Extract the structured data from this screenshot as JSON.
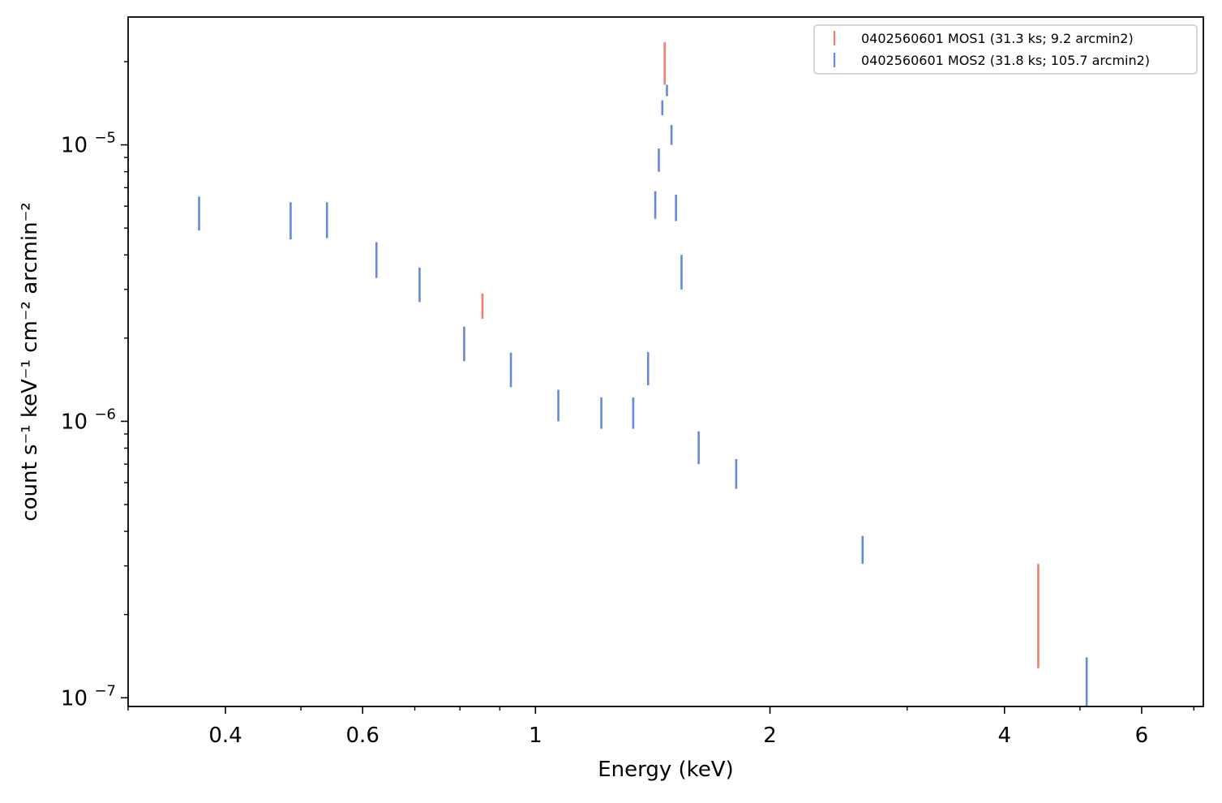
{
  "chart_data": {
    "type": "scatter",
    "title": "",
    "xlabel": "Energy (keV)",
    "ylabel": "count s⁻¹ keV⁻¹ cm⁻² arcmin⁻²",
    "xscale": "log",
    "yscale": "log",
    "xlim": [
      0.3,
      7.2
    ],
    "ylim": [
      9.3e-08,
      2.9e-05
    ],
    "grid": false,
    "legend_position": "top-right",
    "x_ticks": [
      {
        "value": 0.4,
        "label": "0.4"
      },
      {
        "value": 0.6,
        "label": "0.6"
      },
      {
        "value": 1,
        "label": "1"
      },
      {
        "value": 2,
        "label": "2"
      },
      {
        "value": 4,
        "label": "4"
      },
      {
        "value": 6,
        "label": "6"
      }
    ],
    "y_ticks": [
      {
        "value": 1e-07,
        "base": "10",
        "exp": "−7"
      },
      {
        "value": 1e-06,
        "base": "10",
        "exp": "−6"
      },
      {
        "value": 1e-05,
        "base": "10",
        "exp": "−5"
      }
    ],
    "series": [
      {
        "name": "0402560601 MOS1 (31.3 ks; 9.2 arcmin2)",
        "color": "#f07f6e",
        "points": [
          {
            "x": 0.855,
            "ylo": 2.35e-06,
            "yhi": 2.9e-06
          },
          {
            "x": 1.465,
            "ylo": 1.65e-05,
            "yhi": 2.35e-05
          },
          {
            "x": 4.42,
            "ylo": 1.28e-07,
            "yhi": 3.05e-07
          }
        ]
      },
      {
        "name": "0402560601 MOS2 (31.8 ks; 105.7 arcmin2)",
        "color": "#6688dd",
        "points": [
          {
            "x": 0.37,
            "ylo": 4.9e-06,
            "yhi": 6.5e-06
          },
          {
            "x": 0.485,
            "ylo": 4.55e-06,
            "yhi": 6.2e-06
          },
          {
            "x": 0.54,
            "ylo": 4.6e-06,
            "yhi": 6.2e-06
          },
          {
            "x": 0.625,
            "ylo": 3.3e-06,
            "yhi": 4.45e-06
          },
          {
            "x": 0.71,
            "ylo": 2.7e-06,
            "yhi": 3.6e-06
          },
          {
            "x": 0.81,
            "ylo": 1.65e-06,
            "yhi": 2.2e-06
          },
          {
            "x": 0.93,
            "ylo": 1.33e-06,
            "yhi": 1.77e-06
          },
          {
            "x": 1.07,
            "ylo": 1e-06,
            "yhi": 1.3e-06
          },
          {
            "x": 1.215,
            "ylo": 9.4e-07,
            "yhi": 1.22e-06
          },
          {
            "x": 1.335,
            "ylo": 9.4e-07,
            "yhi": 1.22e-06
          },
          {
            "x": 1.395,
            "ylo": 1.35e-06,
            "yhi": 1.78e-06
          },
          {
            "x": 1.425,
            "ylo": 5.4e-06,
            "yhi": 6.8e-06
          },
          {
            "x": 1.44,
            "ylo": 8e-06,
            "yhi": 9.7e-06
          },
          {
            "x": 1.455,
            "ylo": 1.28e-05,
            "yhi": 1.45e-05
          },
          {
            "x": 1.475,
            "ylo": 1.5e-05,
            "yhi": 1.65e-05
          },
          {
            "x": 1.495,
            "ylo": 1e-05,
            "yhi": 1.18e-05
          },
          {
            "x": 1.515,
            "ylo": 5.3e-06,
            "yhi": 6.6e-06
          },
          {
            "x": 1.54,
            "ylo": 3e-06,
            "yhi": 4e-06
          },
          {
            "x": 1.62,
            "ylo": 7e-07,
            "yhi": 9.2e-07
          },
          {
            "x": 1.81,
            "ylo": 5.7e-07,
            "yhi": 7.3e-07
          },
          {
            "x": 2.63,
            "ylo": 3.05e-07,
            "yhi": 3.85e-07
          },
          {
            "x": 5.1,
            "ylo": 9.3e-08,
            "yhi": 1.4e-07
          }
        ]
      }
    ]
  }
}
